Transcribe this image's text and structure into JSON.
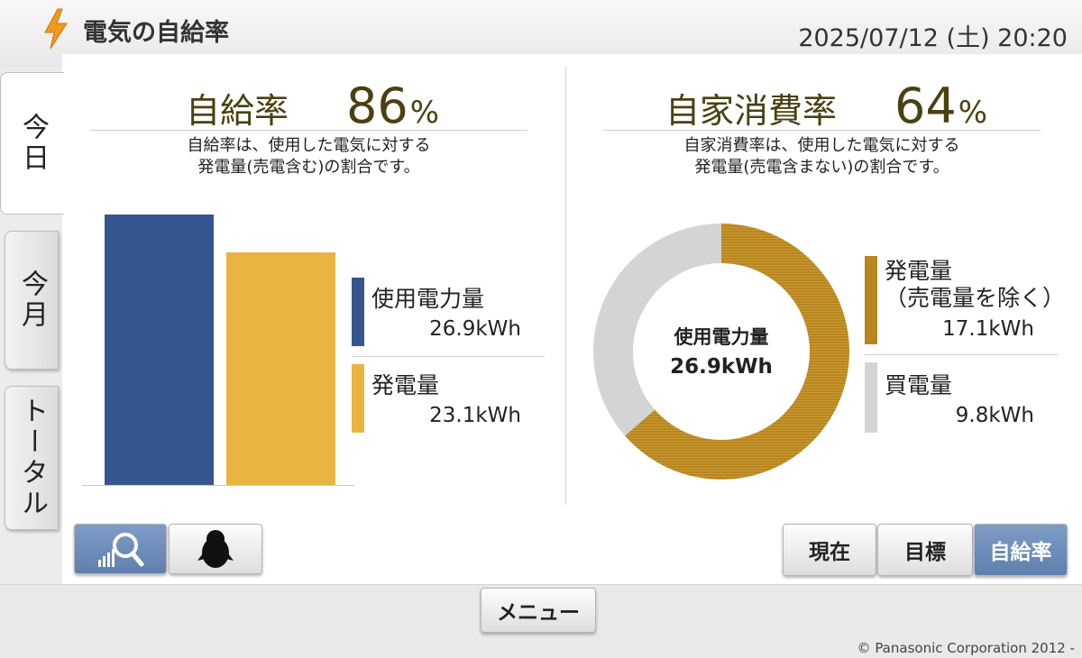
{
  "header": {
    "title": "電気の自給率",
    "datetime": "2025/07/12 (土) 20:20",
    "icon": "lightning-bolt-icon"
  },
  "tabs": [
    {
      "label": "今日",
      "active": true
    },
    {
      "label": "今月",
      "active": false
    },
    {
      "label": "トータル",
      "active": false
    }
  ],
  "self_sufficiency": {
    "label": "自給率",
    "value": "86",
    "unit": "%",
    "desc_line1": "自給率は、使用した電気に対する",
    "desc_line2": "発電量(売電含む)の割合です。",
    "legend": [
      {
        "label": "使用電力量",
        "value": "26.9kWh",
        "color": "#34558f"
      },
      {
        "label": "発電量",
        "value": "23.1kWh",
        "color": "#e9b440"
      }
    ]
  },
  "self_consumption": {
    "label": "自家消費率",
    "value": "64",
    "unit": "%",
    "desc_line1": "自家消費率は、使用した電気に対する",
    "desc_line2": "発電量(売電含まない)の割合です。",
    "center_label": "使用電力量",
    "center_value": "26.9kWh",
    "legend": [
      {
        "label_line1": "発電量",
        "label_line2": "（売電量を除く）",
        "value": "17.1kWh",
        "color": "#b8861e"
      },
      {
        "label": "買電量",
        "value": "9.8kWh",
        "color": "#d4d4d4"
      }
    ]
  },
  "chart_data": [
    {
      "type": "bar",
      "categories": [
        "使用電力量",
        "発電量"
      ],
      "values": [
        26.9,
        23.1
      ],
      "ylim": [
        0,
        26.9
      ]
    },
    {
      "type": "pie",
      "categories": [
        "発電量（売電量を除く）",
        "買電量"
      ],
      "values": [
        17.1,
        9.8
      ]
    }
  ],
  "view_buttons": [
    {
      "icon": "signal-search-icon",
      "active": true
    },
    {
      "icon": "penguin-icon",
      "active": false
    }
  ],
  "mode_buttons": [
    {
      "label": "現在",
      "active": false
    },
    {
      "label": "目標",
      "active": false
    },
    {
      "label": "自給率",
      "active": true
    }
  ],
  "menu_button": "メニュー",
  "copyright": "© Panasonic Corporation 2012 -"
}
